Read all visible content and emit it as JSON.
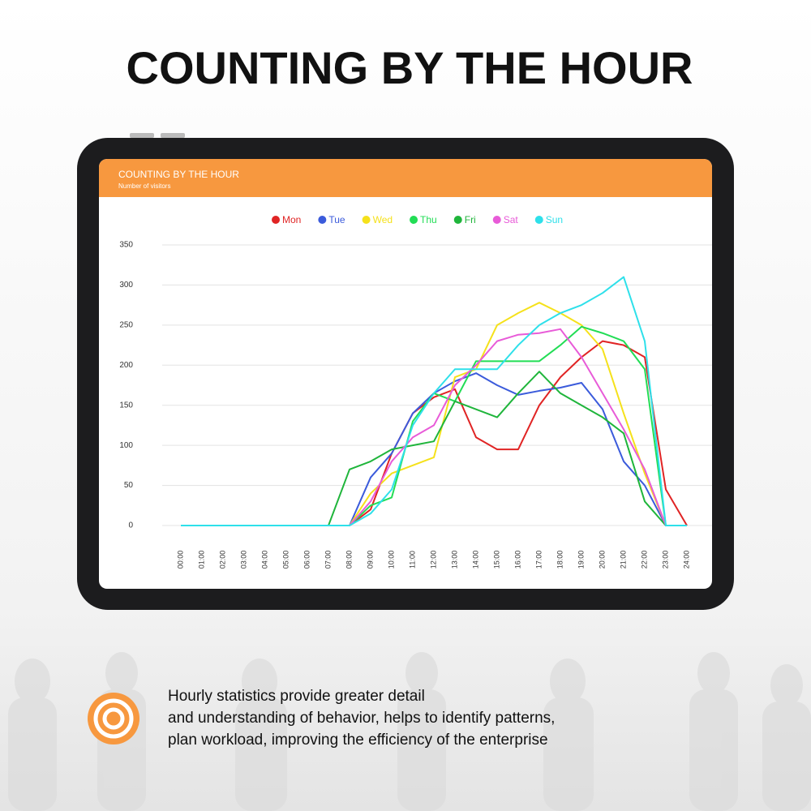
{
  "title": "COUNTING BY THE HOUR",
  "chart_data": {
    "type": "line",
    "title": "COUNTING BY THE HOUR",
    "subtitle": "Number of visitors",
    "categories": [
      "00:00",
      "01:00",
      "02:00",
      "03:00",
      "04:00",
      "05:00",
      "06:00",
      "07:00",
      "08:00",
      "09:00",
      "10:00",
      "11:00",
      "12:00",
      "13:00",
      "14:00",
      "15:00",
      "16:00",
      "17:00",
      "18:00",
      "19:00",
      "20:00",
      "21:00",
      "22:00",
      "23:00",
      "24:00"
    ],
    "series": [
      {
        "name": "Mon",
        "color": "#e02424",
        "values": [
          0,
          0,
          0,
          0,
          0,
          0,
          0,
          0,
          0,
          20,
          90,
          140,
          160,
          170,
          110,
          95,
          95,
          150,
          185,
          210,
          230,
          225,
          210,
          45,
          0
        ]
      },
      {
        "name": "Tue",
        "color": "#3b5bdb",
        "values": [
          0,
          0,
          0,
          0,
          0,
          0,
          0,
          0,
          0,
          60,
          90,
          140,
          165,
          180,
          190,
          175,
          163,
          168,
          172,
          178,
          145,
          80,
          50,
          0,
          0
        ]
      },
      {
        "name": "Wed",
        "color": "#f5e11b",
        "values": [
          0,
          0,
          0,
          0,
          0,
          0,
          0,
          0,
          0,
          40,
          65,
          75,
          85,
          185,
          195,
          250,
          265,
          278,
          265,
          250,
          220,
          140,
          65,
          0,
          0
        ]
      },
      {
        "name": "Thu",
        "color": "#22dd55",
        "values": [
          0,
          0,
          0,
          0,
          0,
          0,
          0,
          0,
          0,
          25,
          35,
          130,
          165,
          155,
          205,
          205,
          205,
          205,
          225,
          248,
          240,
          230,
          195,
          0,
          0
        ]
      },
      {
        "name": "Fri",
        "color": "#1fb53b",
        "values": [
          0,
          0,
          0,
          0,
          0,
          0,
          0,
          0,
          70,
          80,
          95,
          100,
          105,
          155,
          145,
          135,
          165,
          192,
          165,
          150,
          135,
          115,
          30,
          0,
          0
        ]
      },
      {
        "name": "Sat",
        "color": "#e85bd8",
        "values": [
          0,
          0,
          0,
          0,
          0,
          0,
          0,
          0,
          0,
          30,
          80,
          110,
          125,
          175,
          200,
          230,
          238,
          240,
          245,
          210,
          165,
          120,
          70,
          0,
          0
        ]
      },
      {
        "name": "Sun",
        "color": "#2ee0ea",
        "values": [
          0,
          0,
          0,
          0,
          0,
          0,
          0,
          0,
          0,
          15,
          45,
          125,
          165,
          195,
          195,
          195,
          225,
          250,
          265,
          275,
          290,
          310,
          230,
          0,
          0
        ]
      }
    ],
    "ylim": [
      0,
      350
    ],
    "yticks": [
      0,
      50,
      100,
      150,
      200,
      250,
      300,
      350
    ],
    "grid": true
  },
  "description": [
    "Hourly statistics provide greater detail",
    "and understanding of behavior, helps to identify patterns,",
    "plan workload, improving the efficiency of the enterprise"
  ]
}
